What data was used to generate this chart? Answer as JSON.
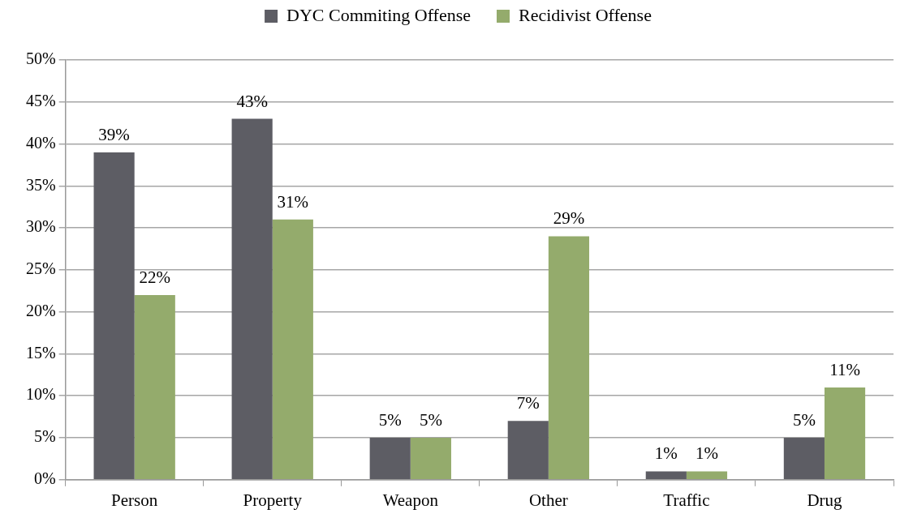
{
  "chart_data": {
    "type": "bar",
    "categories": [
      "Person",
      "Property",
      "Weapon",
      "Other",
      "Traffic",
      "Drug"
    ],
    "series": [
      {
        "name": "DYC Commiting Offense",
        "color": "#5d5d64",
        "values": [
          39,
          43,
          5,
          7,
          1,
          5
        ],
        "value_labels": [
          "39%",
          "43%",
          "5%",
          "7%",
          "1%",
          "5%"
        ]
      },
      {
        "name": "Recidivist Offense",
        "color": "#94ab6c",
        "values": [
          22,
          31,
          5,
          29,
          1,
          11
        ],
        "value_labels": [
          "22%",
          "31%",
          "5%",
          "29%",
          "1%",
          "11%"
        ]
      }
    ],
    "ylim": [
      0,
      50
    ],
    "yticks": [
      {
        "value": 0,
        "label": "0%"
      },
      {
        "value": 5,
        "label": "5%"
      },
      {
        "value": 10,
        "label": "10%"
      },
      {
        "value": 15,
        "label": "15%"
      },
      {
        "value": 20,
        "label": "20%"
      },
      {
        "value": 25,
        "label": "25%"
      },
      {
        "value": 30,
        "label": "30%"
      },
      {
        "value": 35,
        "label": "35%"
      },
      {
        "value": 40,
        "label": "40%"
      },
      {
        "value": 45,
        "label": "45%"
      },
      {
        "value": 50,
        "label": "50%"
      }
    ],
    "grid": "y",
    "legend": "top"
  }
}
